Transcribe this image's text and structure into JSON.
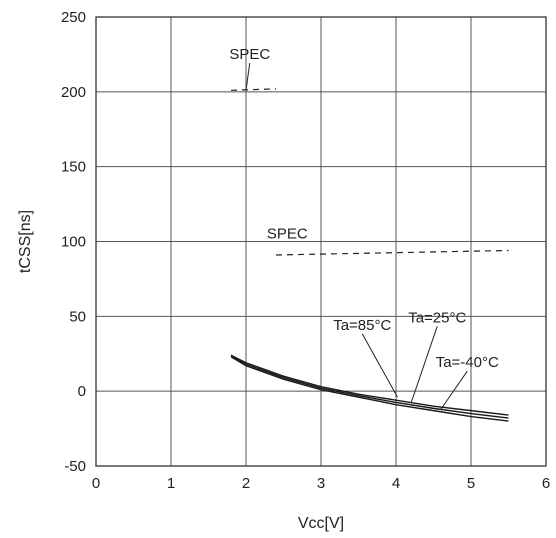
{
  "chart_data": {
    "type": "line",
    "xlabel": "Vcc[V]",
    "ylabel": "tCSS[ns]",
    "xlim": [
      0,
      6
    ],
    "ylim": [
      -50,
      250
    ],
    "xticks": [
      0,
      1,
      2,
      3,
      4,
      5,
      6
    ],
    "yticks": [
      -50,
      0,
      50,
      100,
      150,
      200,
      250
    ],
    "grid": true,
    "series": [
      {
        "name": "Ta=85°C",
        "x": [
          1.8,
          2.0,
          2.5,
          3.0,
          3.5,
          4.0,
          4.5,
          5.0,
          5.5
        ],
        "y": [
          24,
          19,
          10,
          3,
          -2,
          -6,
          -10,
          -13,
          -16
        ]
      },
      {
        "name": "Ta=25°C",
        "x": [
          1.8,
          2.0,
          2.5,
          3.0,
          3.5,
          4.0,
          4.5,
          5.0,
          5.5
        ],
        "y": [
          24,
          18,
          9,
          2,
          -3,
          -7.5,
          -11.5,
          -15,
          -18
        ]
      },
      {
        "name": "Ta=-40°C",
        "x": [
          1.8,
          2.0,
          2.5,
          3.0,
          3.5,
          4.0,
          4.5,
          5.0,
          5.5
        ],
        "y": [
          23,
          17,
          8,
          1,
          -4,
          -9,
          -13,
          -17,
          -20
        ]
      }
    ],
    "spec_lines": [
      {
        "label": "SPEC",
        "x": [
          1.8,
          2.4
        ],
        "y": [
          201,
          202
        ]
      },
      {
        "label": "SPEC",
        "x": [
          2.4,
          5.5
        ],
        "y": [
          91,
          94
        ]
      }
    ],
    "annotations": [
      {
        "text": "SPEC",
        "x": 2.05,
        "y": 222,
        "target": [
          2.0,
          201
        ]
      },
      {
        "text": "SPEC",
        "x": 2.55,
        "y": 102,
        "target": null
      },
      {
        "text": "Ta=85°C",
        "x": 3.55,
        "y": 41,
        "target": [
          4.02,
          -4
        ]
      },
      {
        "text": "Ta=25°C",
        "x": 4.55,
        "y": 46,
        "target": [
          4.2,
          -8
        ]
      },
      {
        "text": "Ta=-40°C",
        "x": 4.95,
        "y": 16,
        "target": [
          4.6,
          -12
        ]
      }
    ]
  }
}
